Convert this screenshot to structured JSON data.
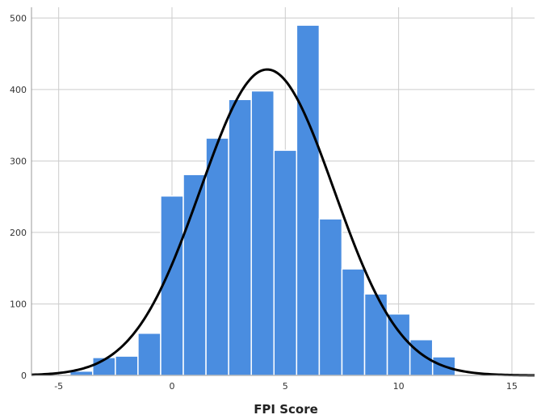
{
  "chart_data": {
    "type": "histogram",
    "title": "",
    "xlabel": "FPI Score",
    "ylabel": "",
    "xlim": [
      -6.2,
      16
    ],
    "ylim": [
      0,
      515
    ],
    "xticks": [
      -5,
      0,
      5,
      10,
      15
    ],
    "yticks": [
      0,
      100,
      200,
      300,
      400,
      500
    ],
    "grid": true,
    "bin_width": 1,
    "bins": [
      {
        "start": -4.5,
        "end": -3.5,
        "count": 6
      },
      {
        "start": -3.5,
        "end": -2.5,
        "count": 25
      },
      {
        "start": -2.5,
        "end": -1.5,
        "count": 27
      },
      {
        "start": -1.5,
        "end": -0.5,
        "count": 59
      },
      {
        "start": -0.5,
        "end": 0.5,
        "count": 251
      },
      {
        "start": 0.5,
        "end": 1.5,
        "count": 281
      },
      {
        "start": 1.5,
        "end": 2.5,
        "count": 332
      },
      {
        "start": 2.5,
        "end": 3.5,
        "count": 386
      },
      {
        "start": 3.5,
        "end": 4.5,
        "count": 398
      },
      {
        "start": 4.5,
        "end": 5.5,
        "count": 315
      },
      {
        "start": 5.5,
        "end": 6.5,
        "count": 490
      },
      {
        "start": 6.5,
        "end": 7.5,
        "count": 219
      },
      {
        "start": 7.5,
        "end": 8.5,
        "count": 149
      },
      {
        "start": 8.5,
        "end": 9.5,
        "count": 114
      },
      {
        "start": 9.5,
        "end": 10.5,
        "count": 86
      },
      {
        "start": 10.5,
        "end": 11.5,
        "count": 50
      },
      {
        "start": 11.5,
        "end": 12.5,
        "count": 26
      }
    ],
    "normal_curve": {
      "mean": 4.2,
      "sd": 2.95,
      "peak": 428
    },
    "colors": {
      "bar": "#4a8de0",
      "bar_edge": "#ffffff",
      "curve": "#000000",
      "grid": "#cccccc",
      "axis": "#999999"
    }
  }
}
